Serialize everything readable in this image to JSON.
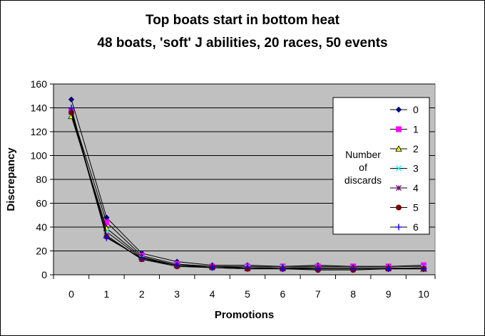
{
  "chart_data": {
    "type": "line",
    "title": "Top boats start in bottom heat",
    "subtitle": "48 boats, 'soft' J abilities, 20 races, 50 events",
    "xlabel": "Promotions",
    "ylabel": "Discrepancy",
    "x": [
      0,
      1,
      2,
      3,
      4,
      5,
      6,
      7,
      8,
      9,
      10
    ],
    "xlim": [
      0,
      10
    ],
    "ylim": [
      0,
      160
    ],
    "yticks": [
      0,
      20,
      40,
      60,
      80,
      100,
      120,
      140,
      160
    ],
    "grid": true,
    "legend_position": "right",
    "legend_title": [
      "Number",
      "of",
      "discards"
    ],
    "series": [
      {
        "name": "0",
        "color": "#000080",
        "marker": "diamond",
        "values": [
          147,
          48,
          18,
          11,
          8,
          8,
          7,
          8,
          7,
          7,
          7
        ]
      },
      {
        "name": "1",
        "color": "#ff00ff",
        "marker": "square",
        "values": [
          137,
          44,
          16,
          9,
          7,
          7,
          7,
          7,
          7,
          7,
          8
        ]
      },
      {
        "name": "2",
        "color": "#ffff00",
        "marker": "triangle",
        "values": [
          133,
          39,
          15,
          8,
          7,
          6,
          6,
          6,
          6,
          6,
          5
        ]
      },
      {
        "name": "3",
        "color": "#00ffff",
        "marker": "x",
        "values": [
          135,
          36,
          14,
          8,
          6,
          6,
          6,
          5,
          5,
          5,
          6
        ]
      },
      {
        "name": "4",
        "color": "#800080",
        "marker": "star",
        "values": [
          138,
          33,
          13,
          8,
          6,
          5,
          5,
          5,
          5,
          5,
          5
        ]
      },
      {
        "name": "5",
        "color": "#800000",
        "marker": "circle",
        "values": [
          136,
          32,
          13,
          7,
          6,
          5,
          5,
          4,
          4,
          5,
          5
        ]
      },
      {
        "name": "6",
        "color": "#0000ff",
        "marker": "plus",
        "values": [
          140,
          31,
          14,
          8,
          6,
          6,
          5,
          5,
          5,
          5,
          5
        ]
      }
    ]
  }
}
